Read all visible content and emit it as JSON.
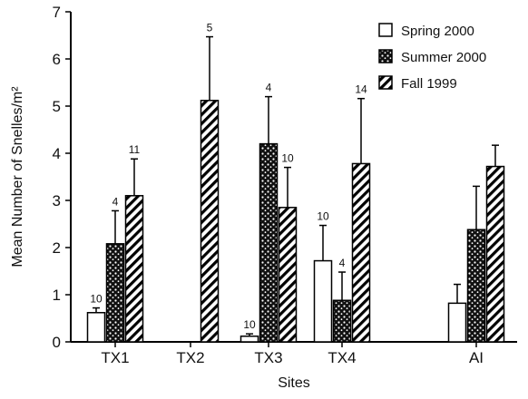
{
  "chart_data": {
    "type": "bar",
    "title": "",
    "xlabel": "Sites",
    "ylabel": "Mean Number of Snelles/m²",
    "ylim": [
      0,
      7
    ],
    "yticks": [
      0,
      1,
      2,
      3,
      4,
      5,
      6,
      7
    ],
    "grid": false,
    "legend_position": "top-right",
    "error_bars": true,
    "categories": [
      "TX1",
      "TX2",
      "TX3",
      "TX4",
      "AI"
    ],
    "series": [
      {
        "name": "Spring 2000",
        "pattern": "white",
        "values": [
          0.62,
          null,
          0.12,
          1.72,
          0.82
        ],
        "errors": [
          0.1,
          null,
          0.05,
          0.75,
          0.4
        ],
        "n_labels": [
          "10",
          "",
          "10",
          "10",
          ""
        ]
      },
      {
        "name": "Summer 2000",
        "pattern": "speckled",
        "values": [
          2.08,
          null,
          4.2,
          0.88,
          2.38
        ],
        "errors": [
          0.7,
          null,
          1.0,
          0.6,
          0.92
        ],
        "n_labels": [
          "4",
          "",
          "4",
          "4",
          ""
        ]
      },
      {
        "name": "Fall 1999",
        "pattern": "hatched",
        "values": [
          3.1,
          5.12,
          2.85,
          3.78,
          3.72
        ],
        "errors": [
          0.78,
          1.35,
          0.85,
          1.38,
          0.45
        ],
        "n_labels": [
          "11",
          "5",
          "10",
          "14",
          ""
        ]
      }
    ]
  }
}
